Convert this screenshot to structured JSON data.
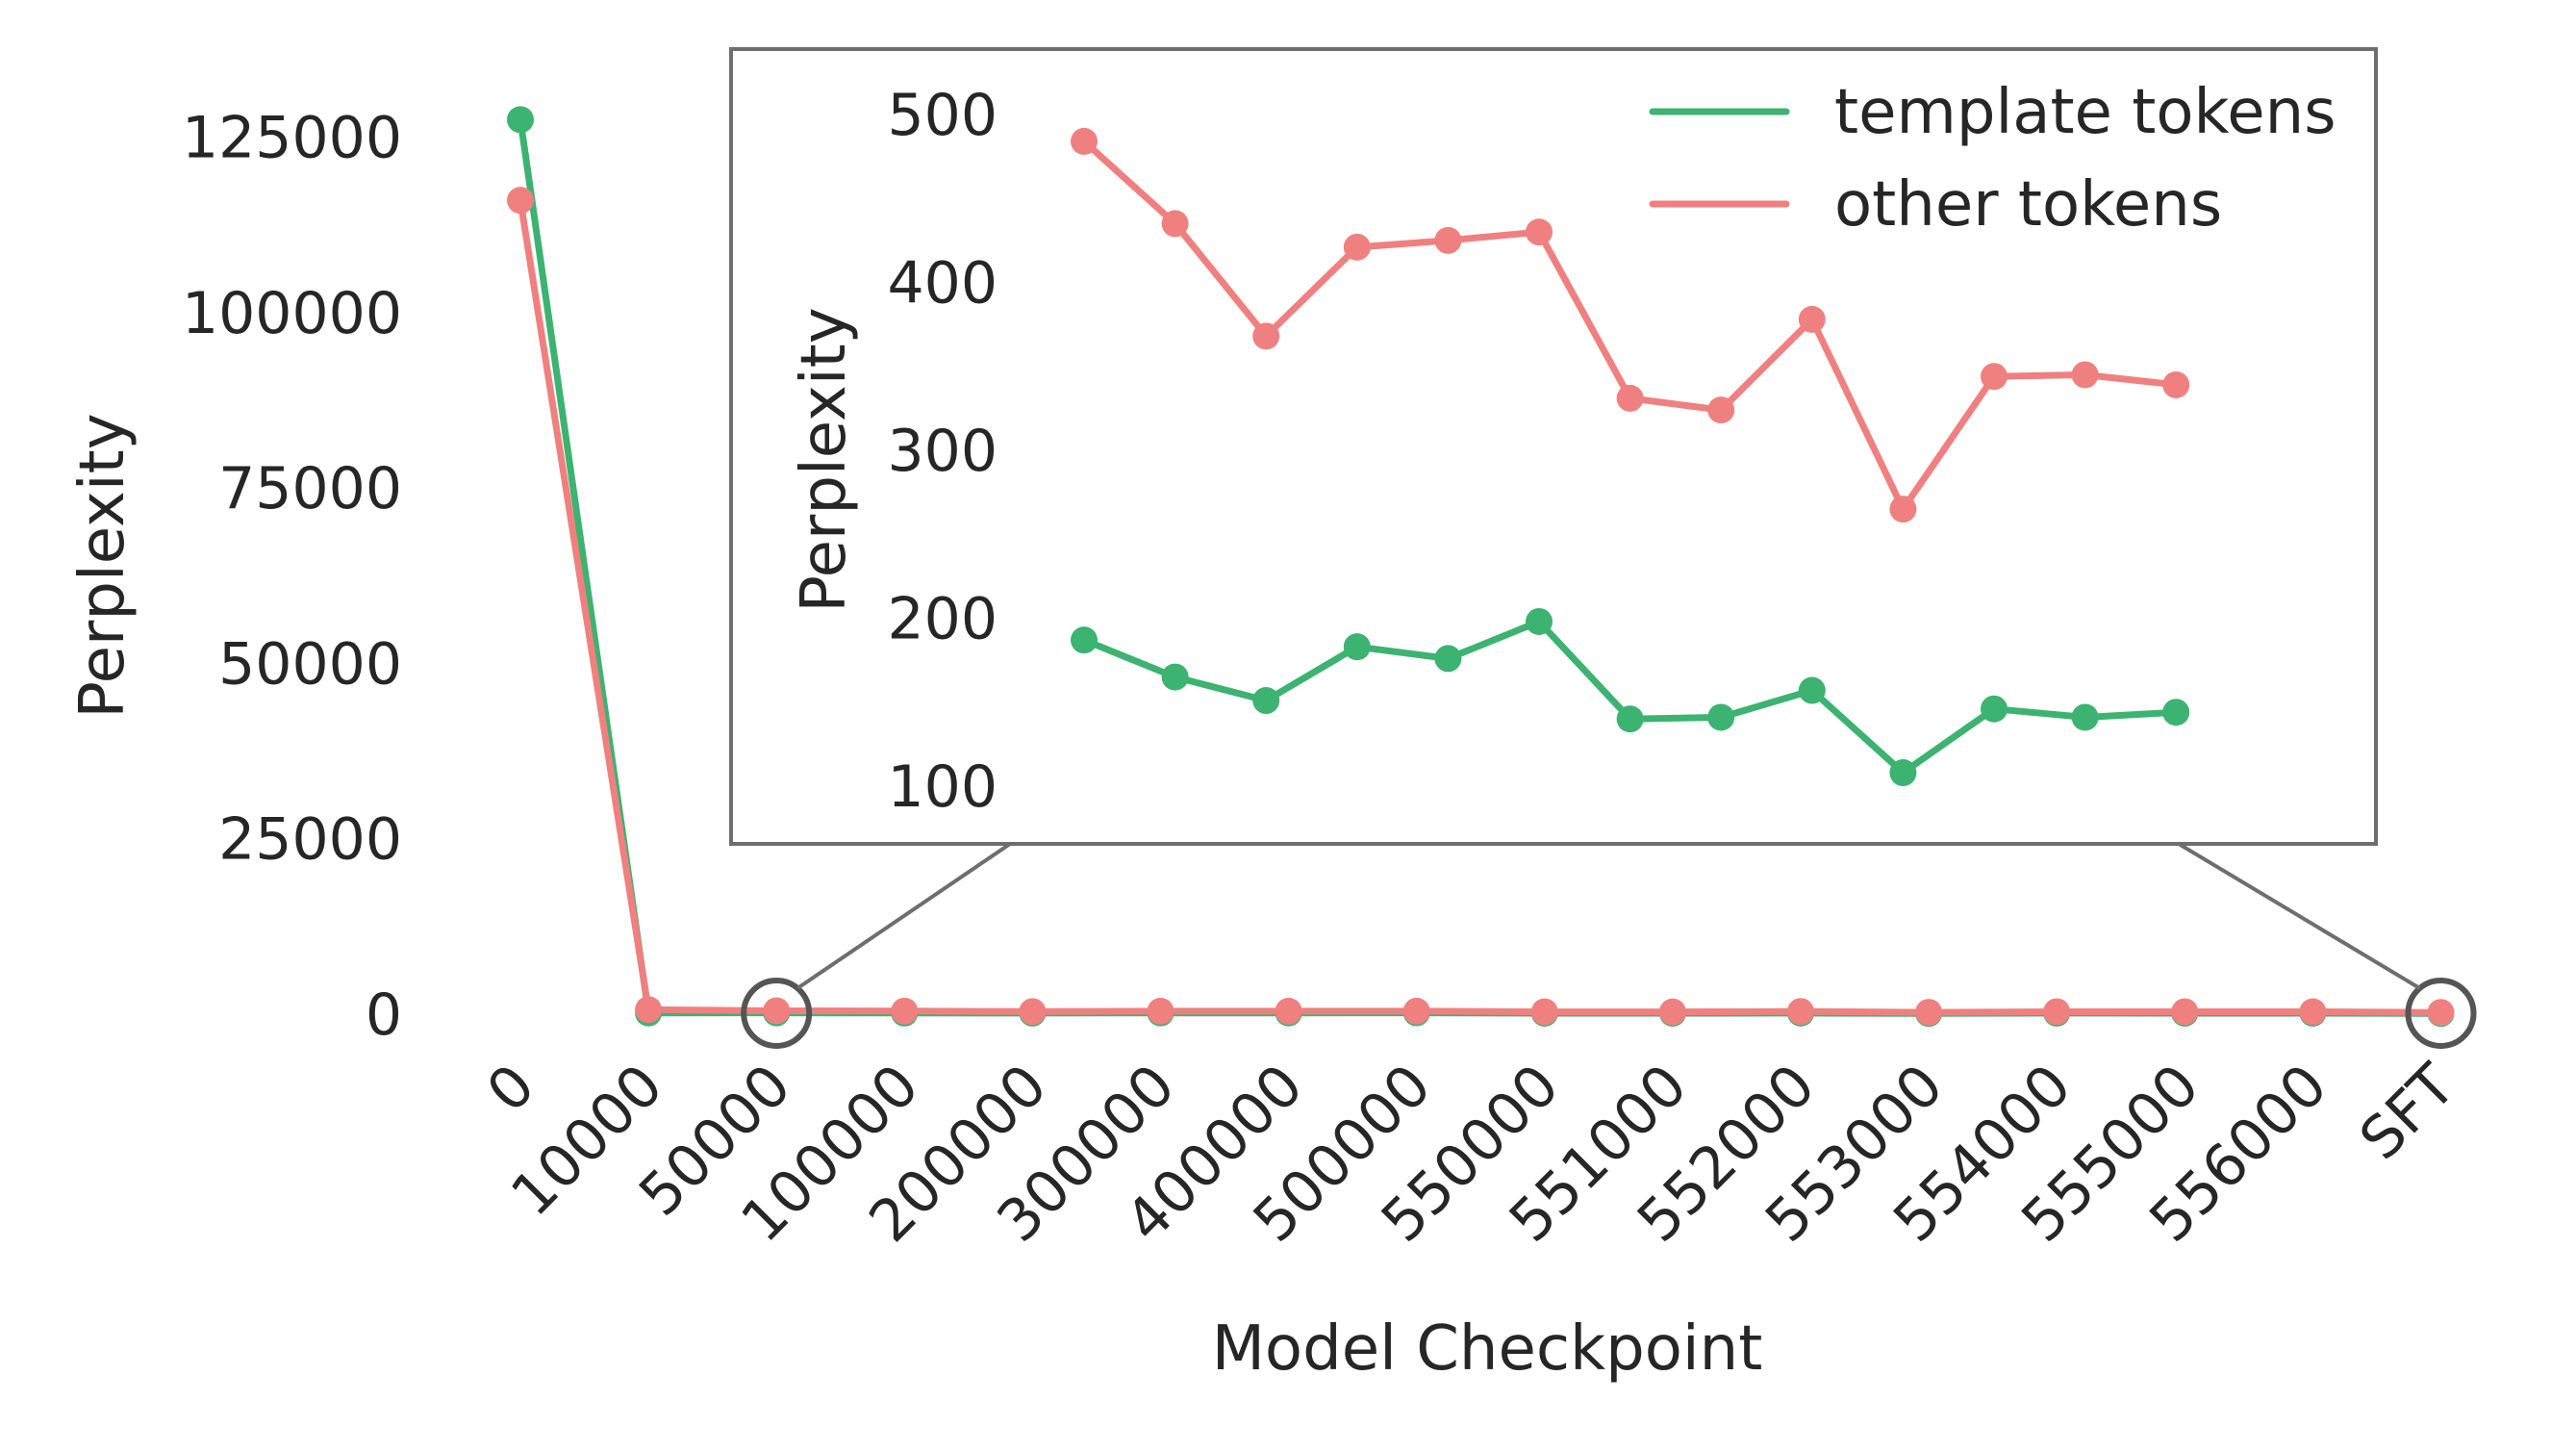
{
  "chart_data": {
    "type": "line",
    "title": "",
    "xlabel": "Model Checkpoint",
    "ylabel": "Perplexity",
    "categories": [
      "0",
      "10000",
      "50000",
      "100000",
      "200000",
      "300000",
      "400000",
      "500000",
      "550000",
      "551000",
      "552000",
      "553000",
      "554000",
      "555000",
      "556000",
      "SFT"
    ],
    "yticks": [
      "0",
      "25000",
      "50000",
      "75000",
      "100000",
      "125000"
    ],
    "ylim": [
      -8000,
      132000
    ],
    "grid": false,
    "series": [
      {
        "name": "template tokens",
        "color": "#3cb371",
        "values": [
          127500,
          180,
          187,
          165,
          151,
          183,
          176,
          198,
          140,
          141,
          157,
          108,
          146,
          141,
          144,
          103
        ]
      },
      {
        "name": "other tokens",
        "color": "#f08080",
        "values": [
          116000,
          650,
          484,
          435,
          368,
          421,
          425,
          430,
          331,
          324,
          378,
          265,
          344,
          345,
          339,
          247
        ]
      }
    ],
    "inset": {
      "ylabel": "Perplexity",
      "x_range": [
        "50000",
        "SFT"
      ],
      "yticks": [
        "100",
        "200",
        "300",
        "400",
        "500"
      ],
      "ylim": [
        68,
        527
      ],
      "legend_position": "top-right",
      "highlight_markers": [
        "50000",
        "SFT"
      ]
    }
  }
}
